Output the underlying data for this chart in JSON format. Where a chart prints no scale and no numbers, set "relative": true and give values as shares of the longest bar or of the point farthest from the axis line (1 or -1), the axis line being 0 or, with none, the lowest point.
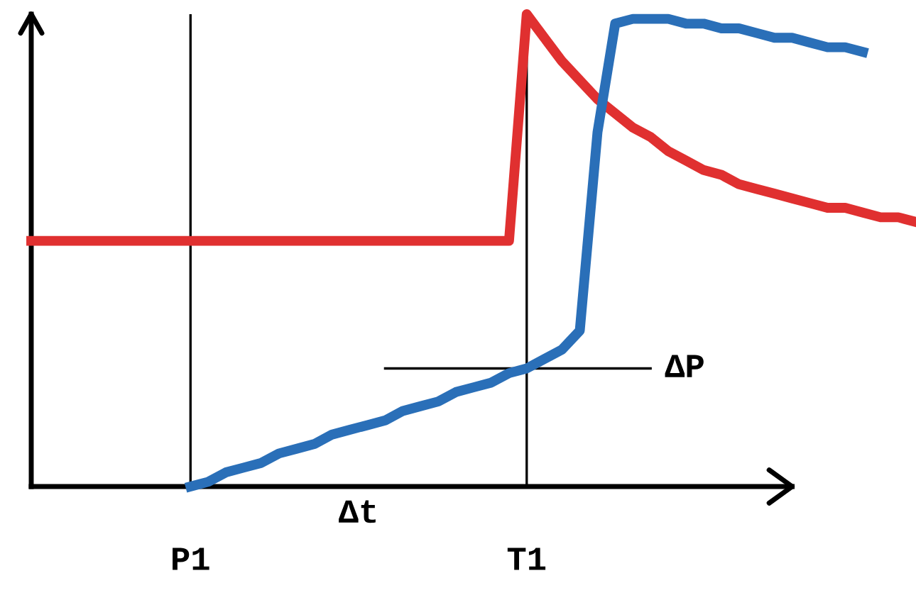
{
  "chart_data": {
    "type": "line",
    "relative": true,
    "marker": "none",
    "line_style": "solid",
    "categories": [
      null,
      null,
      null,
      null,
      null,
      null,
      null,
      null,
      null,
      "P1",
      null,
      null,
      null,
      null,
      null,
      null,
      null,
      null,
      null,
      null,
      null,
      null,
      null,
      null,
      null,
      null,
      null,
      null,
      "T1",
      null,
      null,
      null,
      null,
      null,
      null,
      null,
      null,
      null,
      null,
      null,
      null,
      null,
      null,
      null,
      null,
      null,
      null,
      null,
      null,
      null,
      null
    ],
    "series": [
      {
        "color": "#e03030",
        "values": [
          0.52,
          0.52,
          0.52,
          0.52,
          0.52,
          0.52,
          0.52,
          0.52,
          0.52,
          0.52,
          0.52,
          0.52,
          0.52,
          0.52,
          0.52,
          0.52,
          0.52,
          0.52,
          0.52,
          0.52,
          0.52,
          0.52,
          0.52,
          0.52,
          0.52,
          0.52,
          0.52,
          0.52,
          1.0,
          0.95,
          0.9,
          0.86,
          0.82,
          0.79,
          0.76,
          0.74,
          0.71,
          0.69,
          0.67,
          0.66,
          0.64,
          0.63,
          0.62,
          0.61,
          0.6,
          0.59,
          0.59,
          0.58,
          0.57,
          0.57,
          0.56
        ]
      },
      {
        "color": "#2a6fb8",
        "values": [
          null,
          null,
          null,
          null,
          null,
          null,
          null,
          null,
          null,
          0,
          0.01,
          0.03,
          0.04,
          0.05,
          0.07,
          0.08,
          0.09,
          0.11,
          0.12,
          0.13,
          0.14,
          0.16,
          0.17,
          0.18,
          0.2,
          0.21,
          0.22,
          0.24,
          0.25,
          0.27,
          0.29,
          0.33,
          0.75,
          0.98,
          0.99,
          0.99,
          0.99,
          0.98,
          0.98,
          0.97,
          0.97,
          0.96,
          0.95,
          0.95,
          0.94,
          0.93,
          0.93,
          0.92,
          null,
          null,
          null
        ]
      },
      {
        "color": "#000000",
        "values": [
          null,
          null,
          null,
          null,
          null,
          null,
          null,
          null,
          null,
          null,
          null,
          null,
          null,
          null,
          null,
          null,
          null,
          null,
          null,
          null,
          0.25,
          0.25,
          0.25,
          0.25,
          0.25,
          0.25,
          0.25,
          0.25,
          0.25,
          0.25,
          0.25,
          0.25,
          0.25,
          0.25,
          0.25,
          0.25,
          null,
          null,
          null,
          null,
          null,
          null,
          null,
          null,
          null,
          null,
          null,
          null,
          null,
          null,
          null
        ]
      }
    ],
    "ref_lines": [
      {
        "axis": "x",
        "value": "P1",
        "color": "#000000"
      },
      {
        "axis": "x",
        "value": "T1",
        "color": "#000000"
      }
    ],
    "annotations": [
      "ΔP",
      "Δt"
    ]
  }
}
